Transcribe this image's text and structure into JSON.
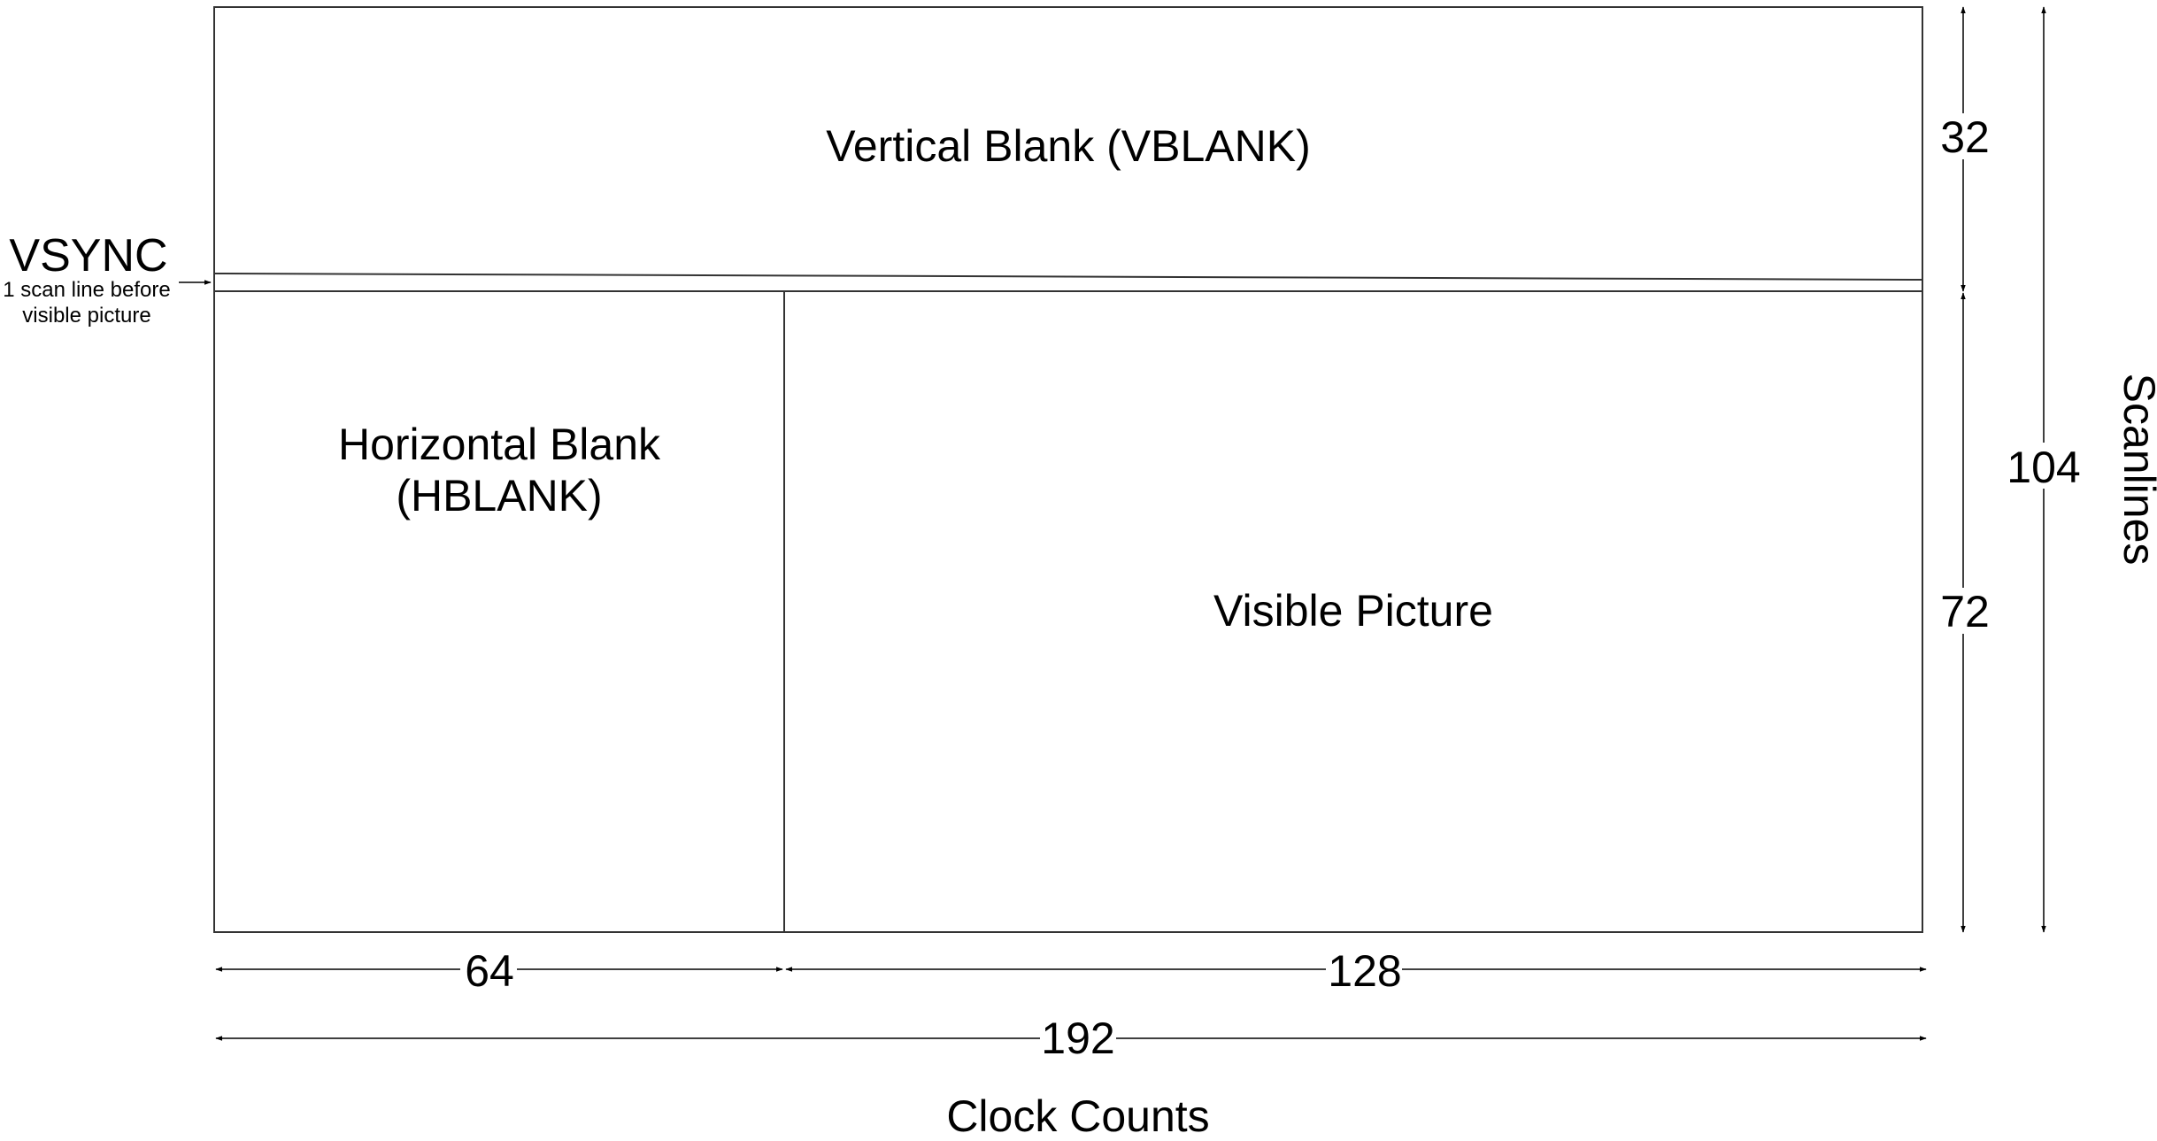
{
  "regions": {
    "vblank": "Vertical Blank (VBLANK)",
    "hblank_line1": "Horizontal Blank",
    "hblank_line2": "(HBLANK)",
    "visible": "Visible Picture"
  },
  "vsync": {
    "title": "VSYNC",
    "note_line1": "1 scan line before",
    "note_line2": "visible picture"
  },
  "dimensions": {
    "hblank_clocks": "64",
    "visible_clocks": "128",
    "total_clocks": "192",
    "vblank_scanlines": "32",
    "visible_scanlines": "72",
    "total_scanlines": "104"
  },
  "axes": {
    "x_label": "Clock Counts",
    "y_label": "Scanlines"
  }
}
